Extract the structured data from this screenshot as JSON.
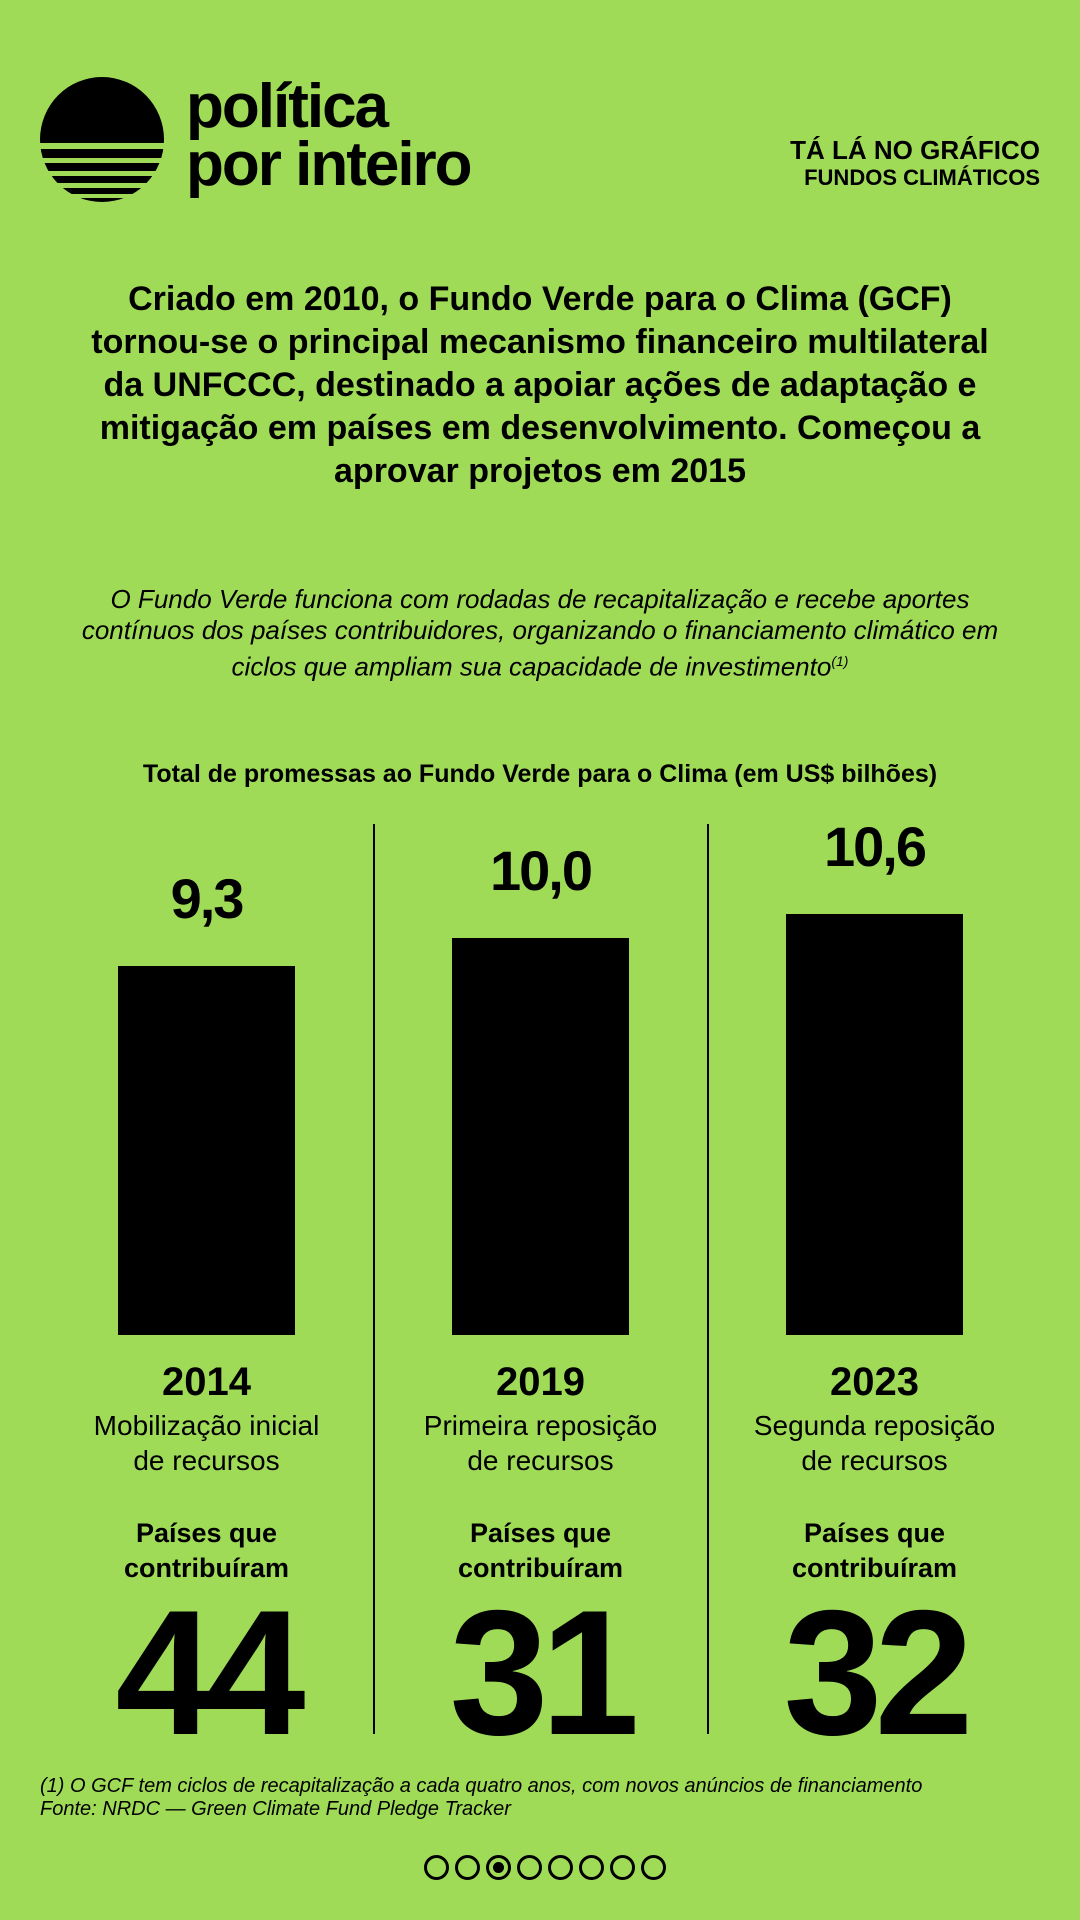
{
  "brand": {
    "line1": "política",
    "line2": "por inteiro"
  },
  "series": {
    "title": "TÁ LÁ NO GRÁFICO",
    "subtitle": "FUNDOS CLIMÁTICOS"
  },
  "headline": "Criado em 2010, o Fundo Verde para o Clima (GCF) tornou-se o principal mecanismo financeiro multilateral da UNFCCC, destinado a apoiar ações de adaptação e mitigação em países em desenvolvimento. Começou a aprovar projetos em 2015",
  "intro": {
    "text": "O Fundo Verde funciona com rodadas de recapitalização e recebe aportes contínuos dos países contribuidores, organizando o financiamento climático em ciclos que ampliam sua capacidade de investimento",
    "note_ref": "(1)"
  },
  "chart_data": {
    "type": "bar",
    "title": "Total de promessas ao Fundo Verde para o Clima (em US$ bilhões)",
    "categories": [
      "2014",
      "2019",
      "2023"
    ],
    "value_labels": [
      "9,3",
      "10,0",
      "10,6"
    ],
    "values": [
      9.3,
      10.0,
      10.6
    ],
    "descriptions": [
      "Mobilização inicial de recursos",
      "Primeira reposição de recursos",
      "Segunda reposição de recursos"
    ],
    "countries_label": "Países que contribuíram",
    "countries": [
      "44",
      "31",
      "32"
    ],
    "bar_color": "#000000"
  },
  "footer": {
    "note": "(1) O GCF tem ciclos de recapitalização a cada quatro anos, com novos anúncios de financiamento",
    "source": "Fonte: NRDC — Green Climate Fund Pledge Tracker"
  },
  "pagination": {
    "total": 8,
    "active": 3
  },
  "colors": {
    "background": "#a0db58",
    "ink": "#000000"
  }
}
